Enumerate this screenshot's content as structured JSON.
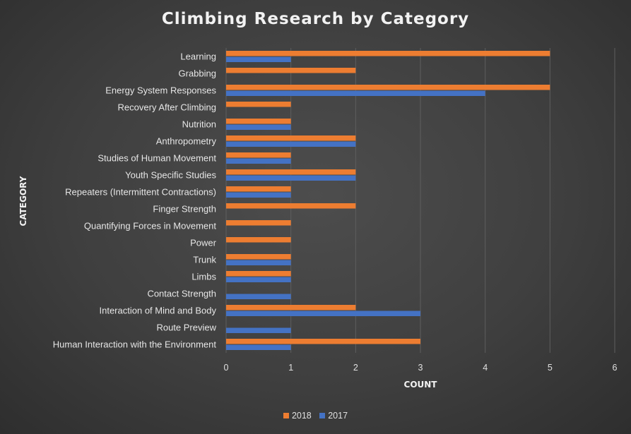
{
  "chart_data": {
    "type": "bar",
    "orientation": "horizontal",
    "title": "Climbing Research by Category",
    "xlabel": "COUNT",
    "ylabel": "CATEGORY",
    "xlim": [
      0,
      6
    ],
    "xticks": [
      "0",
      "1",
      "2",
      "3",
      "4",
      "5",
      "6"
    ],
    "grid": true,
    "legend_position": "bottom",
    "categories": [
      "Learning",
      "Grabbing",
      "Energy System Responses",
      "Recovery After Climbing",
      "Nutrition",
      "Anthropometry",
      "Studies of Human Movement",
      "Youth Specific Studies",
      "Repeaters (Intermittent Contractions)",
      "Finger Strength",
      "Quantifying Forces in Movement",
      "Power",
      "Trunk",
      "Limbs",
      "Contact Strength",
      "Interaction of Mind and Body",
      "Route Preview",
      "Human Interaction with the Environment"
    ],
    "series": [
      {
        "name": "2018",
        "color": "#ed7d31",
        "values": [
          5,
          2,
          5,
          1,
          1,
          2,
          1,
          2,
          1,
          2,
          1,
          1,
          1,
          1,
          0,
          2,
          0,
          3
        ]
      },
      {
        "name": "2017",
        "color": "#4472c4",
        "values": [
          1,
          0,
          4,
          0,
          1,
          2,
          1,
          2,
          1,
          0,
          0,
          0,
          1,
          1,
          1,
          3,
          1,
          1
        ]
      }
    ]
  }
}
